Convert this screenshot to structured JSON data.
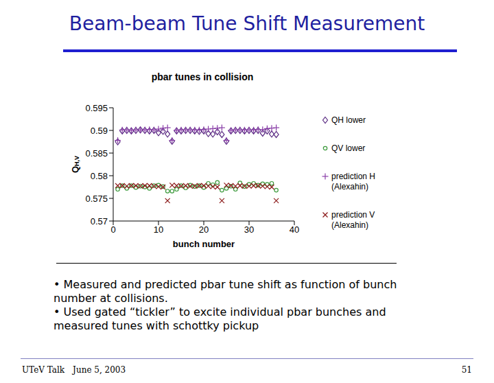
{
  "slide": {
    "title": "Beam-beam Tune Shift Measurement",
    "bullets": [
      "• Measured and predicted pbar tune shift as function of bunch number at collisions.",
      "• Used gated “tickler” to excite individual pbar bunches and measured tunes with schottky pickup"
    ],
    "footer_left": "UTeV Talk",
    "footer_date": "June 5, 2003",
    "page": 51
  },
  "chart_data": {
    "type": "scatter",
    "title": "pbar tunes in collision",
    "x_label": "bunch number",
    "y_label": "QH,V",
    "xlim": [
      0,
      40
    ],
    "xticks": [
      0,
      10,
      20,
      30,
      40
    ],
    "ylim": [
      0.57,
      0.595
    ],
    "yticks": [
      0.57,
      0.575,
      0.58,
      0.585,
      0.59,
      0.595
    ],
    "grid": false,
    "legend": "right",
    "x": [
      1,
      2,
      3,
      4,
      5,
      6,
      7,
      8,
      9,
      10,
      11,
      12,
      13,
      14,
      15,
      16,
      17,
      18,
      19,
      20,
      21,
      22,
      23,
      24,
      25,
      26,
      27,
      28,
      29,
      30,
      31,
      32,
      33,
      34,
      35,
      36
    ],
    "series": [
      {
        "name": "QH lower",
        "color": "#5b2c83",
        "marker": "diamond",
        "values": [
          0.5875,
          0.5899,
          0.59,
          0.5899,
          0.59,
          0.5901,
          0.59,
          0.5899,
          0.59,
          0.5895,
          0.5898,
          0.5892,
          0.5876,
          0.5899,
          0.5899,
          0.59,
          0.59,
          0.5899,
          0.5898,
          0.5899,
          0.5893,
          0.5892,
          0.5897,
          0.5891,
          0.5876,
          0.5899,
          0.59,
          0.59,
          0.5899,
          0.59,
          0.5899,
          0.59,
          0.5894,
          0.5899,
          0.5892,
          0.5891
        ]
      },
      {
        "name": "QV lower",
        "color": "#3c9a3c",
        "marker": "circle",
        "values": [
          0.577,
          0.5778,
          0.5772,
          0.5778,
          0.5774,
          0.5777,
          0.5775,
          0.5772,
          0.5778,
          0.5779,
          0.5776,
          0.5766,
          0.5766,
          0.577,
          0.5778,
          0.5773,
          0.5779,
          0.5776,
          0.5778,
          0.5774,
          0.5783,
          0.578,
          0.5785,
          0.5768,
          0.5772,
          0.5777,
          0.577,
          0.5784,
          0.5776,
          0.5781,
          0.5783,
          0.5779,
          0.5782,
          0.5781,
          0.5783,
          0.5768
        ]
      },
      {
        "name": "prediction H (Alexahin)",
        "color": "#8a3fa8",
        "marker": "plus",
        "values": [
          0.5878,
          0.5901,
          0.5901,
          0.59,
          0.5901,
          0.5901,
          0.5901,
          0.5902,
          0.5901,
          0.5903,
          0.5905,
          0.5906,
          0.5878,
          0.59,
          0.5901,
          0.5901,
          0.5901,
          0.5901,
          0.5901,
          0.5902,
          0.5903,
          0.5904,
          0.5905,
          0.5906,
          0.5878,
          0.59,
          0.5901,
          0.5901,
          0.5901,
          0.5901,
          0.5901,
          0.5902,
          0.5902,
          0.5904,
          0.5905,
          0.5906
        ]
      },
      {
        "name": "prediction V (Alexahin)",
        "color": "#8b1a1a",
        "marker": "x",
        "values": [
          0.5778,
          0.5778,
          0.5777,
          0.5778,
          0.5778,
          0.5777,
          0.5778,
          0.5778,
          0.5777,
          0.5776,
          0.5775,
          0.5745,
          0.5779,
          0.5778,
          0.5777,
          0.5778,
          0.5777,
          0.5777,
          0.5778,
          0.5778,
          0.5777,
          0.5776,
          0.5775,
          0.5745,
          0.5779,
          0.5778,
          0.5777,
          0.5778,
          0.5777,
          0.5777,
          0.5778,
          0.5778,
          0.5777,
          0.5776,
          0.5775,
          0.5745
        ]
      }
    ]
  }
}
